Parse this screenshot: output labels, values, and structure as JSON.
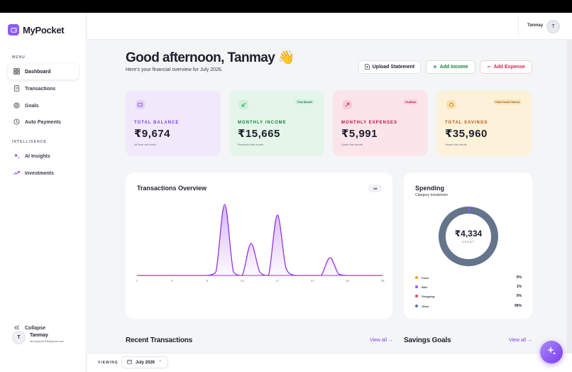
{
  "app": {
    "name": "MyPocket"
  },
  "sidebar": {
    "menu_label": "MENU",
    "items": [
      {
        "label": "Dashboard",
        "icon": "dashboard-icon",
        "active": true
      },
      {
        "label": "Transactions",
        "icon": "receipt-icon"
      },
      {
        "label": "Goals",
        "icon": "target-icon"
      },
      {
        "label": "Auto Payments",
        "icon": "autopay-icon"
      }
    ],
    "intelligence_label": "INTELLIGENCE",
    "intel_items": [
      {
        "label": "AI Insights",
        "icon": "sparkle-icon"
      },
      {
        "label": "Investments",
        "icon": "trend-up-icon"
      }
    ],
    "collapse_label": "Collapse",
    "user": {
      "initial": "T",
      "name": "Tanmay",
      "email": "tanmayksdu08@gmail.com"
    }
  },
  "header": {
    "user_name": "Tanmay",
    "user_initial": "T"
  },
  "greeting": {
    "title": "Good afternoon, Tanmay 👋",
    "subtitle": "Here's your financial overview for July 2026."
  },
  "actions": {
    "upload": "Upload Statement",
    "add_income": "Add Income",
    "add_expense": "Add Expense"
  },
  "cards": [
    {
      "label": "TOTAL BALANCE",
      "value": "₹9,674",
      "sub": "All time net worth",
      "badge": "",
      "accent": "#8b5cf6",
      "bg": "#f1e9fb"
    },
    {
      "label": "MONTHLY INCOME",
      "value": "₹15,665",
      "sub": "Received this month",
      "badge": "This Month",
      "accent": "#16a34a",
      "bg": "#e4f6e9"
    },
    {
      "label": "MONTHLY EXPENSES",
      "value": "₹5,991",
      "sub": "Spent this month",
      "badge": "Outflow",
      "accent": "#e11d48",
      "bg": "#fbe4ea"
    },
    {
      "label": "TOTAL SAVINGS",
      "value": "₹35,960",
      "sub": "Saved this month",
      "badge": "Total Goals Saved",
      "accent": "#d97706",
      "bg": "#fcf2d9"
    }
  ],
  "transactions_overview": {
    "title": "Transactions Overview",
    "range": "1M"
  },
  "chart_data": {
    "type": "area",
    "title": "Transactions Overview",
    "x": [
      1,
      2,
      3,
      4,
      5,
      6,
      7,
      8,
      9,
      10,
      11,
      12,
      13,
      14,
      15,
      16,
      17,
      18,
      19,
      20,
      21,
      22,
      23,
      24,
      25,
      26,
      27,
      28,
      29
    ],
    "series": [
      {
        "values": [
          0,
          0,
          0,
          0,
          0,
          0,
          0,
          0,
          0,
          5,
          100,
          5,
          0,
          45,
          5,
          0,
          85,
          10,
          0,
          0,
          0,
          0,
          25,
          2,
          0,
          0,
          0,
          0,
          0
        ]
      }
    ],
    "xticks": [
      "1",
      "5",
      "9",
      "13",
      "17",
      "21",
      "25",
      "29"
    ],
    "ylim": [
      0,
      100
    ],
    "accent": "#9333ea"
  },
  "spending": {
    "title": "Spending",
    "subtitle": "Category breakdown",
    "center_value": "₹4,334",
    "center_label": "SPENT",
    "categories": [
      {
        "name": "Food",
        "pct": "0%",
        "color": "#f59e0b"
      },
      {
        "name": "Bills",
        "pct": "1%",
        "color": "#8b5cf6"
      },
      {
        "name": "Shopping",
        "pct": "0%",
        "color": "#f43f5e"
      },
      {
        "name": "Other",
        "pct": "99%",
        "color": "#64748b"
      }
    ]
  },
  "recent": {
    "title": "Recent Transactions",
    "view_all": "View all →"
  },
  "savings_goals": {
    "title": "Savings Goals",
    "view_all": "View all →"
  },
  "footer": {
    "viewing_label": "VIEWING",
    "month": "July 2026"
  }
}
